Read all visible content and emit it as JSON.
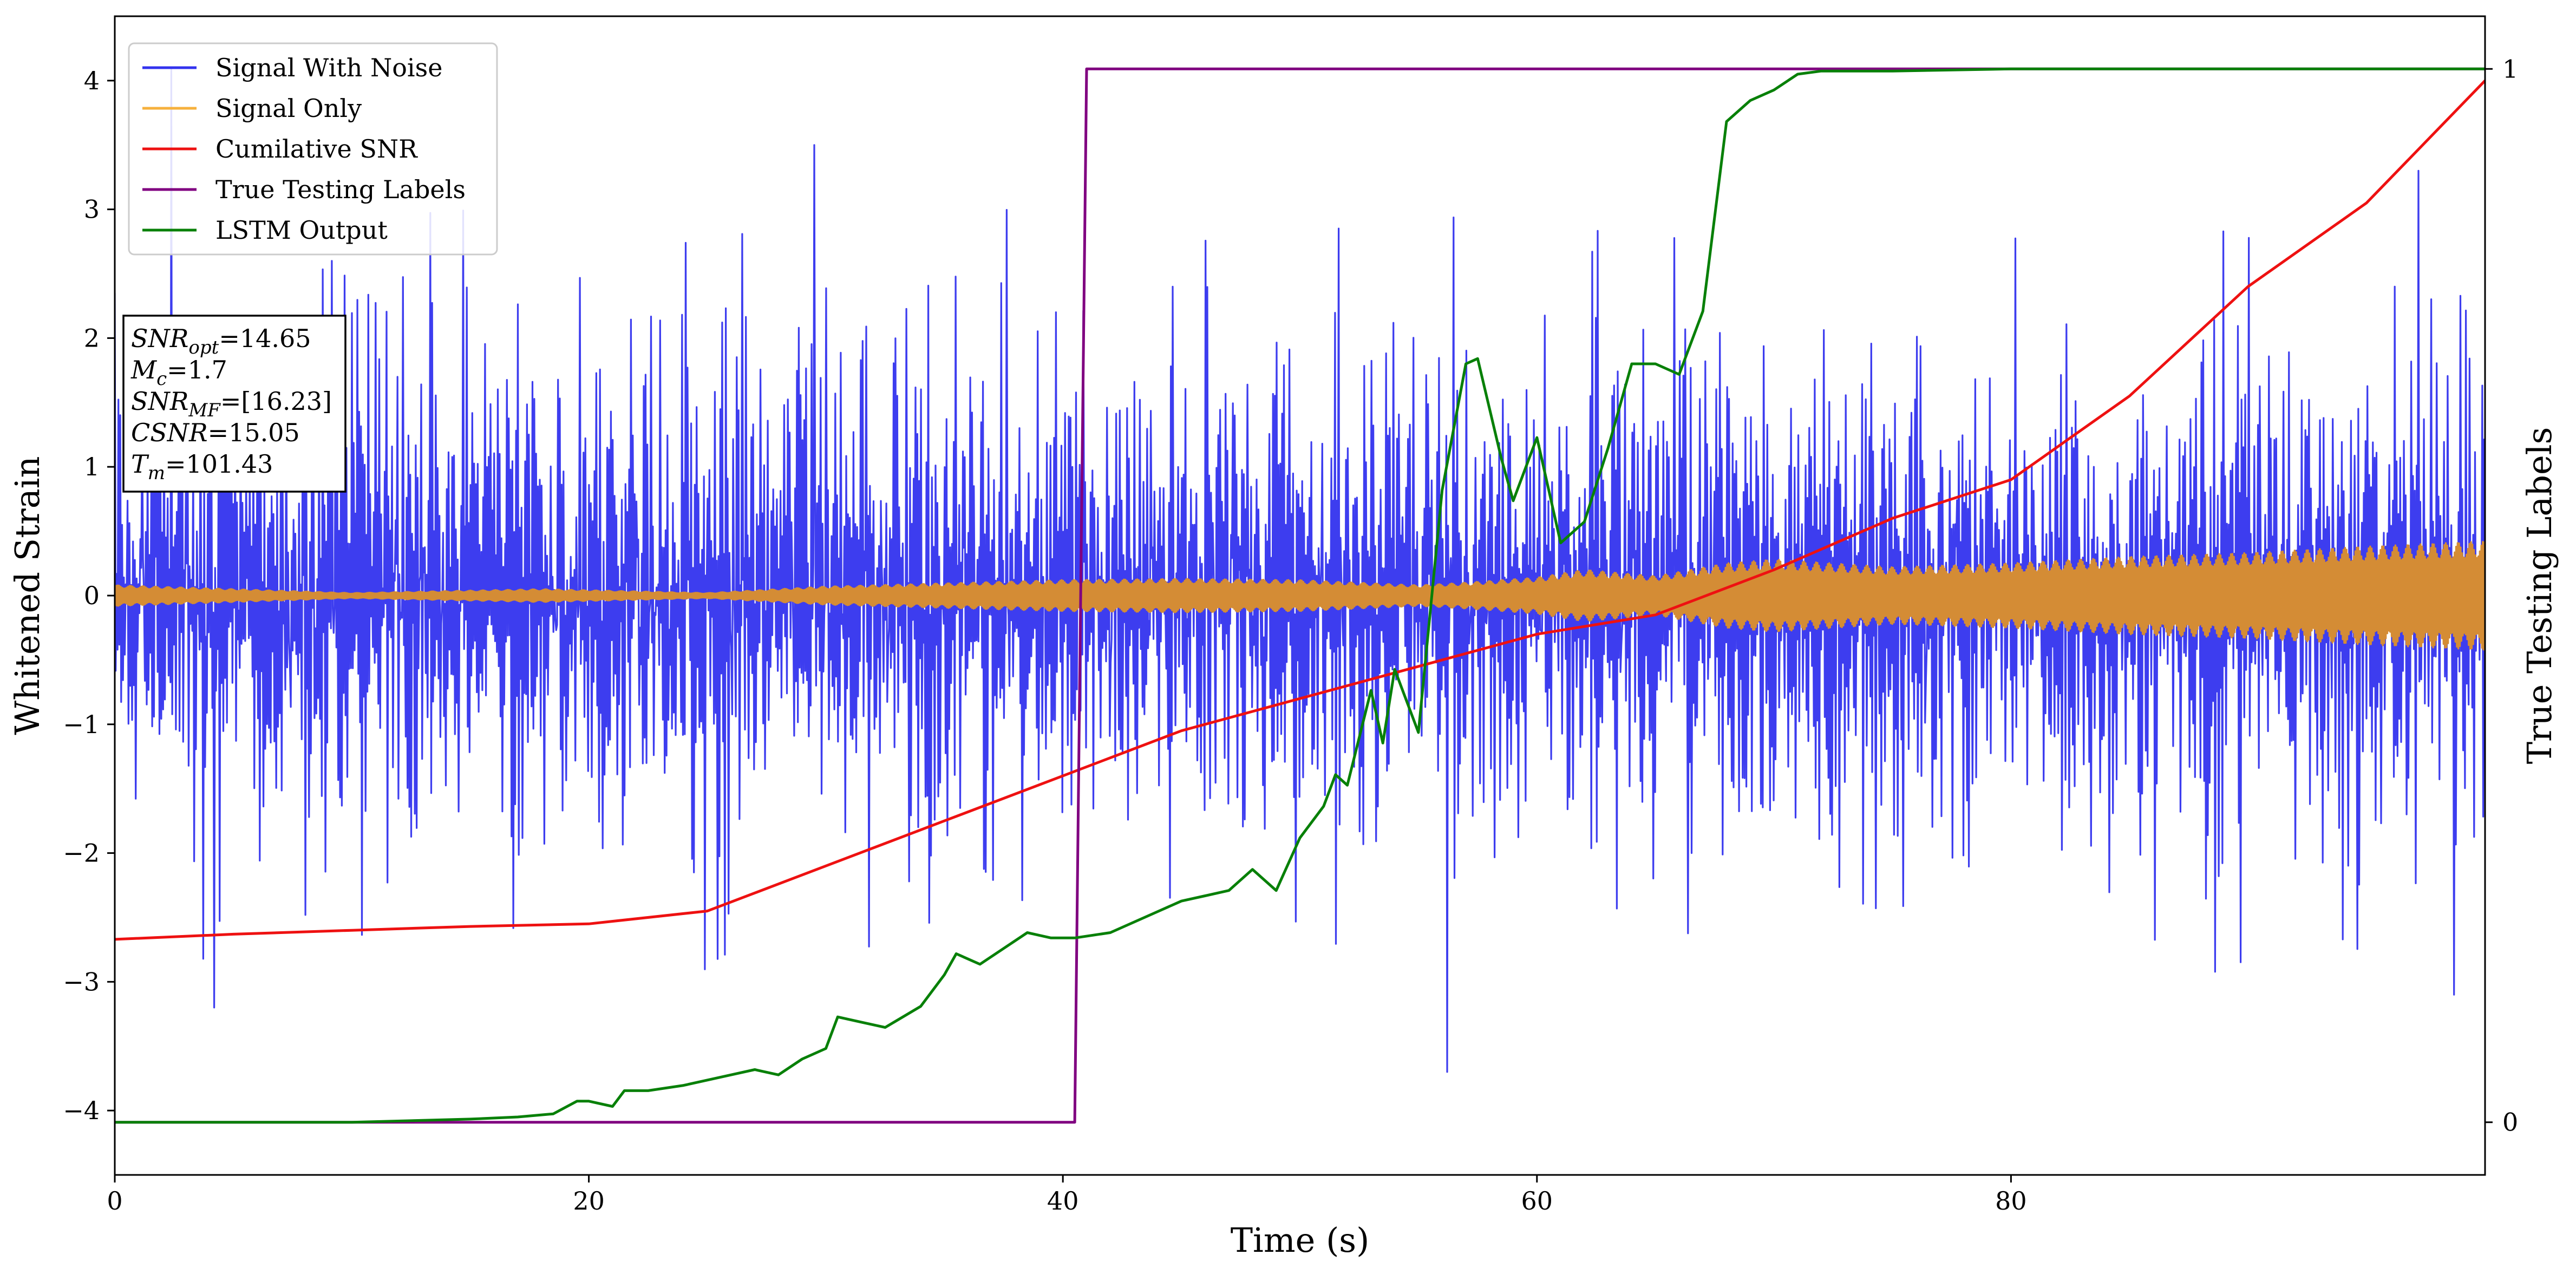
{
  "chart_data": {
    "type": "line",
    "title": "",
    "xlabel": "Time (s)",
    "ylabel": "Whitened Strain",
    "ylabel_right": "True Testing Labels",
    "xlim": [
      0,
      100
    ],
    "ylim": [
      -4.5,
      4.5
    ],
    "ylim_right": [
      -0.05,
      1.05
    ],
    "x_ticks": [
      0,
      20,
      40,
      60,
      80
    ],
    "y_ticks": [
      -4,
      -3,
      -2,
      -1,
      0,
      1,
      2,
      3,
      4
    ],
    "y_ticks_right": [
      0,
      1
    ],
    "grid": false,
    "legend_position": "top-left",
    "colors": {
      "noise": "#3333ee",
      "signal": "#d48c35",
      "signal_legend": "#f6b13d",
      "csnr": "#ee1111",
      "labels": "#800080",
      "lstm": "#088008"
    },
    "series": [
      {
        "name": "Signal With Noise",
        "axis": "left",
        "description_type": "noise_band",
        "band_envelope_x": [
          0,
          20,
          40,
          60,
          80,
          100
        ],
        "band_envelope": [
          1.3,
          1.3,
          1.35,
          1.35,
          1.35,
          1.35
        ],
        "extreme_spikes": [
          {
            "x": 2.4,
            "y": 4.1
          },
          {
            "x": 4.2,
            "y": -3.2
          },
          {
            "x": 29.5,
            "y": 3.5
          },
          {
            "x": 56.2,
            "y": -3.7
          },
          {
            "x": 97.2,
            "y": 3.3
          },
          {
            "x": 98.7,
            "y": -3.1
          }
        ]
      },
      {
        "name": "Signal Only",
        "axis": "left",
        "description_type": "amplitude_band",
        "x": [
          0,
          5,
          10,
          18,
          25,
          30,
          40,
          45,
          50,
          55,
          57,
          60,
          62,
          65,
          68,
          70,
          75,
          80,
          85,
          90,
          95,
          100
        ],
        "amplitude": [
          0.08,
          0.05,
          0.02,
          0.05,
          0.02,
          0.07,
          0.12,
          0.13,
          0.12,
          0.08,
          0.1,
          0.14,
          0.2,
          0.15,
          0.25,
          0.28,
          0.22,
          0.25,
          0.3,
          0.33,
          0.38,
          0.42
        ]
      },
      {
        "name": "Cumilative SNR",
        "axis": "left",
        "x": [
          0,
          5,
          10,
          15,
          20,
          25,
          30,
          35,
          40,
          45,
          50,
          55,
          60,
          65,
          70,
          75,
          80,
          85,
          90,
          95,
          100
        ],
        "values": [
          -2.67,
          -2.63,
          -2.6,
          -2.57,
          -2.55,
          -2.45,
          -2.1,
          -1.75,
          -1.4,
          -1.05,
          -0.8,
          -0.55,
          -0.3,
          -0.15,
          0.2,
          0.6,
          0.9,
          1.55,
          2.4,
          3.05,
          4.0
        ]
      },
      {
        "name": "True Testing Labels",
        "axis": "right",
        "x": [
          0,
          40.5,
          41.0,
          100
        ],
        "values": [
          0,
          0,
          1,
          1
        ]
      },
      {
        "name": "LSTM Output",
        "axis": "right",
        "x": [
          0,
          10,
          15,
          17,
          18.5,
          19.5,
          20,
          21,
          21.5,
          22.5,
          24,
          26,
          27,
          28,
          29,
          30,
          30.5,
          31.5,
          32.5,
          34,
          35,
          35.5,
          36.5,
          37.5,
          38.5,
          39.5,
          40.5,
          42,
          44,
          45,
          46,
          47,
          48,
          49,
          50,
          51,
          51.5,
          52,
          53,
          53.5,
          54,
          55,
          56,
          57,
          57.5,
          58.5,
          59,
          60,
          61,
          62,
          63,
          64,
          65,
          66,
          67,
          68,
          69,
          70,
          71,
          72,
          73,
          75,
          80,
          85,
          100
        ],
        "values": [
          0,
          0,
          0.003,
          0.005,
          0.008,
          0.02,
          0.02,
          0.015,
          0.03,
          0.03,
          0.035,
          0.045,
          0.05,
          0.045,
          0.06,
          0.07,
          0.1,
          0.095,
          0.09,
          0.11,
          0.14,
          0.16,
          0.15,
          0.165,
          0.18,
          0.175,
          0.175,
          0.18,
          0.2,
          0.21,
          0.215,
          0.22,
          0.24,
          0.22,
          0.27,
          0.3,
          0.33,
          0.32,
          0.41,
          0.36,
          0.43,
          0.37,
          0.6,
          0.72,
          0.725,
          0.63,
          0.59,
          0.65,
          0.55,
          0.57,
          0.64,
          0.72,
          0.72,
          0.71,
          0.77,
          0.95,
          0.97,
          0.98,
          0.995,
          0.998,
          0.998,
          0.998,
          1.0,
          1.0,
          1.0
        ]
      }
    ]
  },
  "annotation": {
    "lines": [
      {
        "base": "SNR",
        "sub": "opt",
        "value": "=14.65"
      },
      {
        "base": "M",
        "sub": "c",
        "value": "=1.7"
      },
      {
        "base": "SNR",
        "sub": "MF",
        "value": "=[16.23]"
      },
      {
        "base": "CSNR",
        "sub": "",
        "value": "=15.05"
      },
      {
        "base": "T",
        "sub": "m",
        "value": "=101.43"
      }
    ]
  }
}
